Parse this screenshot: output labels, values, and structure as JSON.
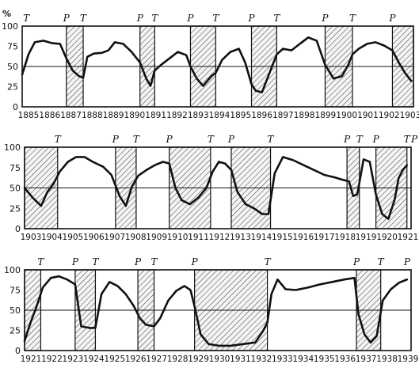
{
  "chart_data": [
    {
      "type": "line",
      "ylabel": "%",
      "yticks": [
        0,
        25,
        50,
        75,
        100
      ],
      "ylim": [
        0,
        100
      ],
      "xlim": [
        1885,
        1903.6
      ],
      "x_tick_labels": [
        "1885",
        "1886",
        "1887",
        "1888",
        "1889",
        "1890",
        "1891",
        "1892",
        "1893",
        "1894",
        "1895",
        "1896",
        "1897",
        "1898",
        "1899",
        "1900",
        "1901",
        "1902",
        "1903"
      ],
      "reference_line": 50,
      "recessions": [
        [
          1887.1,
          1887.9
        ],
        [
          1890.6,
          1891.3
        ],
        [
          1893.0,
          1894.2
        ],
        [
          1895.9,
          1897.1
        ],
        [
          1899.4,
          1900.7
        ],
        [
          1902.6,
          1903.6
        ]
      ],
      "phase_markers": [
        {
          "label": "T",
          "x": 1885.2
        },
        {
          "label": "P",
          "x": 1887.1
        },
        {
          "label": "T",
          "x": 1887.9
        },
        {
          "label": "P",
          "x": 1890.6
        },
        {
          "label": "T",
          "x": 1891.3
        },
        {
          "label": "P",
          "x": 1893.0
        },
        {
          "label": "T",
          "x": 1894.2
        },
        {
          "label": "P",
          "x": 1895.9
        },
        {
          "label": "T",
          "x": 1897.1
        },
        {
          "label": "P",
          "x": 1899.4
        },
        {
          "label": "T",
          "x": 1900.7
        },
        {
          "label": "P",
          "x": 1902.6
        }
      ],
      "x": [
        1885.0,
        1885.3,
        1885.6,
        1886.0,
        1886.4,
        1886.8,
        1887.1,
        1887.4,
        1887.7,
        1887.9,
        1888.1,
        1888.4,
        1888.8,
        1889.1,
        1889.4,
        1889.8,
        1890.2,
        1890.6,
        1890.9,
        1891.1,
        1891.3,
        1891.6,
        1892.0,
        1892.4,
        1892.8,
        1893.0,
        1893.3,
        1893.6,
        1894.0,
        1894.2,
        1894.5,
        1894.9,
        1895.3,
        1895.6,
        1895.9,
        1896.1,
        1896.4,
        1896.7,
        1897.1,
        1897.4,
        1897.8,
        1898.2,
        1898.6,
        1899.0,
        1899.4,
        1899.8,
        1900.2,
        1900.5,
        1900.7,
        1901.0,
        1901.4,
        1901.8,
        1902.2,
        1902.6,
        1902.9,
        1903.2,
        1903.5
      ],
      "y": [
        40,
        65,
        80,
        82,
        79,
        78,
        60,
        45,
        38,
        36,
        62,
        66,
        67,
        70,
        80,
        78,
        68,
        55,
        35,
        26,
        45,
        52,
        60,
        68,
        64,
        50,
        35,
        26,
        38,
        42,
        58,
        68,
        72,
        55,
        28,
        20,
        18,
        38,
        65,
        72,
        70,
        78,
        86,
        82,
        52,
        35,
        38,
        52,
        65,
        72,
        78,
        80,
        76,
        70,
        55,
        42,
        32
      ]
    },
    {
      "type": "line",
      "ylabel": "",
      "yticks": [
        0,
        25,
        50,
        75,
        100
      ],
      "ylim": [
        0,
        100
      ],
      "xlim": [
        1903,
        1921.7
      ],
      "x_tick_labels": [
        "1903",
        "1904",
        "1905",
        "1906",
        "1907",
        "1908",
        "1909",
        "1910",
        "1911",
        "1912",
        "1913",
        "1914",
        "1915",
        "1916",
        "1917",
        "1918",
        "1919",
        "1920",
        "1921"
      ],
      "reference_line": 50,
      "recessions": [
        [
          1903.0,
          1904.6
        ],
        [
          1907.4,
          1908.4
        ],
        [
          1910.0,
          1912.0
        ],
        [
          1913.0,
          1914.9
        ],
        [
          1918.6,
          1919.2
        ],
        [
          1920.0,
          1921.5
        ]
      ],
      "phase_markers": [
        {
          "label": "T",
          "x": 1904.6
        },
        {
          "label": "P",
          "x": 1907.4
        },
        {
          "label": "T",
          "x": 1908.4
        },
        {
          "label": "P",
          "x": 1910.0
        },
        {
          "label": "T",
          "x": 1912.0
        },
        {
          "label": "P",
          "x": 1913.0
        },
        {
          "label": "T",
          "x": 1914.9
        },
        {
          "label": "P",
          "x": 1918.6
        },
        {
          "label": "T",
          "x": 1919.2
        },
        {
          "label": "P",
          "x": 1920.0
        },
        {
          "label": "T",
          "x": 1921.5
        },
        {
          "label": "P",
          "x": 1921.9
        }
      ],
      "x": [
        1903.0,
        1903.4,
        1903.8,
        1904.1,
        1904.4,
        1904.7,
        1905.1,
        1905.5,
        1905.9,
        1906.3,
        1906.8,
        1907.2,
        1907.6,
        1907.9,
        1908.2,
        1908.5,
        1908.9,
        1909.3,
        1909.7,
        1910.0,
        1910.3,
        1910.6,
        1911.0,
        1911.4,
        1911.8,
        1912.1,
        1912.4,
        1912.7,
        1913.0,
        1913.3,
        1913.7,
        1914.1,
        1914.5,
        1914.8,
        1915.1,
        1915.5,
        1916.0,
        1916.5,
        1917.0,
        1917.5,
        1918.0,
        1918.4,
        1918.7,
        1918.9,
        1919.1,
        1919.4,
        1919.7,
        1920.0,
        1920.3,
        1920.6,
        1920.9,
        1921.1,
        1921.3,
        1921.5
      ],
      "y": [
        50,
        38,
        28,
        45,
        55,
        70,
        82,
        88,
        88,
        82,
        76,
        66,
        40,
        28,
        52,
        65,
        72,
        78,
        82,
        80,
        50,
        35,
        30,
        38,
        50,
        70,
        82,
        80,
        72,
        45,
        30,
        25,
        18,
        18,
        68,
        88,
        84,
        78,
        72,
        66,
        63,
        60,
        58,
        40,
        42,
        85,
        82,
        42,
        18,
        12,
        35,
        62,
        72,
        78
      ]
    },
    {
      "type": "line",
      "ylabel": "",
      "yticks": [
        0,
        25,
        50,
        75,
        100
      ],
      "ylim": [
        0,
        100
      ],
      "xlim": [
        1920.6,
        1939.7
      ],
      "x_tick_labels": [
        "1921",
        "1922",
        "1923",
        "1924",
        "1925",
        "1926",
        "1927",
        "1928",
        "1929",
        "1930",
        "1931",
        "1932",
        "1933",
        "1934",
        "1935",
        "1936",
        "1937",
        "1938",
        "1939"
      ],
      "reference_line": 50,
      "recessions": [
        [
          1920.6,
          1921.4
        ],
        [
          1923.1,
          1924.1
        ],
        [
          1926.2,
          1927.0
        ],
        [
          1929.0,
          1932.6
        ],
        [
          1937.0,
          1938.2
        ]
      ],
      "phase_markers": [
        {
          "label": "T",
          "x": 1921.4
        },
        {
          "label": "P",
          "x": 1923.1
        },
        {
          "label": "T",
          "x": 1924.1
        },
        {
          "label": "P",
          "x": 1926.2
        },
        {
          "label": "T",
          "x": 1927.0
        },
        {
          "label": "P",
          "x": 1929.0
        },
        {
          "label": "T",
          "x": 1932.6
        },
        {
          "label": "P",
          "x": 1937.0
        },
        {
          "label": "T",
          "x": 1938.2
        },
        {
          "label": "P",
          "x": 1939.5
        }
      ],
      "x": [
        1920.6,
        1920.9,
        1921.2,
        1921.5,
        1921.9,
        1922.3,
        1922.7,
        1923.1,
        1923.4,
        1923.8,
        1924.1,
        1924.4,
        1924.8,
        1925.2,
        1925.6,
        1926.0,
        1926.3,
        1926.6,
        1927.0,
        1927.3,
        1927.7,
        1928.1,
        1928.5,
        1928.8,
        1929.0,
        1929.3,
        1929.7,
        1930.2,
        1930.8,
        1931.4,
        1932.0,
        1932.4,
        1932.6,
        1932.8,
        1933.1,
        1933.5,
        1934.0,
        1934.6,
        1935.2,
        1935.8,
        1936.4,
        1936.9,
        1937.1,
        1937.4,
        1937.7,
        1938.0,
        1938.3,
        1938.7,
        1939.1,
        1939.5
      ],
      "y": [
        12,
        35,
        55,
        78,
        90,
        92,
        88,
        82,
        30,
        28,
        28,
        70,
        85,
        80,
        70,
        55,
        40,
        32,
        30,
        40,
        62,
        74,
        80,
        75,
        55,
        20,
        8,
        6,
        6,
        8,
        10,
        25,
        35,
        70,
        88,
        76,
        75,
        78,
        82,
        85,
        88,
        90,
        45,
        20,
        10,
        18,
        62,
        76,
        84,
        88
      ]
    }
  ]
}
